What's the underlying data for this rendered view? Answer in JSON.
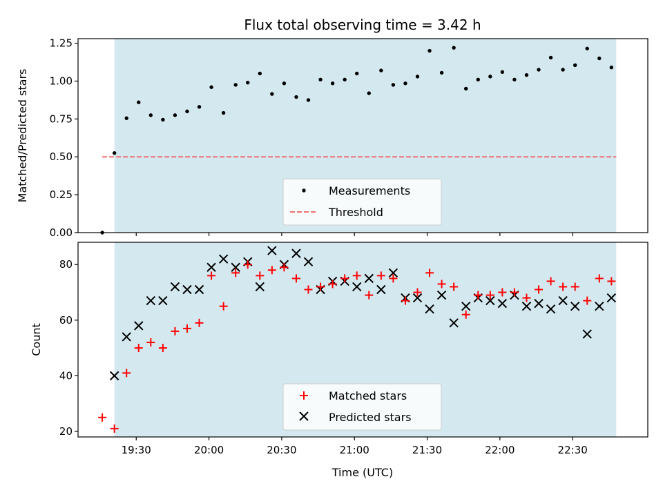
{
  "chart_data": [
    {
      "type": "scatter",
      "title": "Flux total observing time = 3.42 h",
      "xlabel": "",
      "ylabel": "Matched/Predicted stars",
      "xlim_minutes": [
        1146,
        1381
      ],
      "ylim": [
        0,
        1.28
      ],
      "xticks": [
        {
          "minutes": 1170,
          "label": "19:30"
        },
        {
          "minutes": 1200,
          "label": "20:00"
        },
        {
          "minutes": 1230,
          "label": "20:30"
        },
        {
          "minutes": 1260,
          "label": "21:00"
        },
        {
          "minutes": 1290,
          "label": "21:30"
        },
        {
          "minutes": 1320,
          "label": "22:00"
        },
        {
          "minutes": 1350,
          "label": "22:30"
        }
      ],
      "show_xtick_labels": false,
      "yticks": [
        0.0,
        0.25,
        0.5,
        0.75,
        1.0,
        1.25
      ],
      "ytick_labels": [
        "0.00",
        "0.25",
        "0.50",
        "0.75",
        "1.00",
        "1.25"
      ],
      "observing_span_minutes": [
        1161,
        1368
      ],
      "span_color": "#d4e9ef",
      "threshold": {
        "name": "Threshold",
        "value": 0.5,
        "from_minutes": 1156,
        "to_minutes": 1368,
        "color": "#f07070"
      },
      "series": [
        {
          "name": "Measurements",
          "marker": "dot",
          "color": "#000000",
          "x_minutes": [
            1156,
            1161,
            1166,
            1171,
            1176,
            1181,
            1186,
            1191,
            1196,
            1201,
            1206,
            1211,
            1216,
            1221,
            1226,
            1231,
            1236,
            1241,
            1246,
            1251,
            1256,
            1261,
            1266,
            1271,
            1276,
            1281,
            1286,
            1291,
            1296,
            1301,
            1306,
            1311,
            1316,
            1321,
            1326,
            1331,
            1336,
            1341,
            1346,
            1351,
            1356,
            1361,
            1366
          ],
          "values": [
            0.0,
            0.525,
            0.755,
            0.86,
            0.775,
            0.745,
            0.775,
            0.8,
            0.83,
            0.96,
            0.79,
            0.975,
            0.99,
            1.05,
            0.915,
            0.985,
            0.895,
            0.875,
            1.01,
            0.985,
            1.01,
            1.05,
            0.92,
            1.07,
            0.975,
            0.985,
            1.03,
            1.2,
            1.055,
            1.22,
            0.95,
            1.01,
            1.03,
            1.06,
            1.01,
            1.04,
            1.075,
            1.155,
            1.075,
            1.105,
            1.215,
            1.15,
            1.09
          ]
        }
      ],
      "legend": {
        "placement": "lower-center",
        "entries": [
          "Measurements",
          "Threshold"
        ]
      }
    },
    {
      "type": "scatter",
      "title": "",
      "xlabel": "Time (UTC)",
      "ylabel": "Count",
      "xlim_minutes": [
        1146,
        1381
      ],
      "ylim": [
        18,
        88
      ],
      "xticks": [
        {
          "minutes": 1170,
          "label": "19:30"
        },
        {
          "minutes": 1200,
          "label": "20:00"
        },
        {
          "minutes": 1230,
          "label": "20:30"
        },
        {
          "minutes": 1260,
          "label": "21:00"
        },
        {
          "minutes": 1290,
          "label": "21:30"
        },
        {
          "minutes": 1320,
          "label": "22:00"
        },
        {
          "minutes": 1350,
          "label": "22:30"
        }
      ],
      "show_xtick_labels": true,
      "yticks": [
        20,
        40,
        60,
        80
      ],
      "ytick_labels": [
        "20",
        "40",
        "60",
        "80"
      ],
      "observing_span_minutes": [
        1161,
        1368
      ],
      "span_color": "#d4e9ef",
      "series": [
        {
          "name": "Matched stars",
          "marker": "plus",
          "color": "#ff0000",
          "x_minutes": [
            1156,
            1161,
            1166,
            1171,
            1176,
            1181,
            1186,
            1191,
            1196,
            1201,
            1206,
            1211,
            1216,
            1221,
            1226,
            1231,
            1236,
            1241,
            1246,
            1251,
            1256,
            1261,
            1266,
            1271,
            1276,
            1281,
            1286,
            1291,
            1296,
            1301,
            1306,
            1311,
            1316,
            1321,
            1326,
            1331,
            1336,
            1341,
            1346,
            1351,
            1356,
            1361,
            1366
          ],
          "values": [
            25,
            21,
            41,
            50,
            52,
            50,
            56,
            57,
            59,
            76,
            65,
            77,
            80,
            76,
            78,
            79,
            75,
            71,
            72,
            73,
            75,
            76,
            69,
            76,
            75,
            67,
            70,
            77,
            73,
            72,
            62,
            69,
            69,
            70,
            70,
            68,
            71,
            74,
            72,
            72,
            67,
            75,
            74
          ]
        },
        {
          "name": "Predicted stars",
          "marker": "x",
          "color": "#000000",
          "x_minutes": [
            1161,
            1166,
            1171,
            1176,
            1181,
            1186,
            1191,
            1196,
            1201,
            1206,
            1211,
            1216,
            1221,
            1226,
            1231,
            1236,
            1241,
            1246,
            1251,
            1256,
            1261,
            1266,
            1271,
            1276,
            1281,
            1286,
            1291,
            1296,
            1301,
            1306,
            1311,
            1316,
            1321,
            1326,
            1331,
            1336,
            1341,
            1346,
            1351,
            1356,
            1361,
            1366
          ],
          "values": [
            40,
            54,
            58,
            67,
            67,
            72,
            71,
            71,
            79,
            82,
            79,
            81,
            72,
            85,
            80,
            84,
            81,
            71,
            74,
            74,
            72,
            75,
            71,
            77,
            68,
            68,
            64,
            69,
            59,
            65,
            68,
            67,
            66,
            69,
            65,
            66,
            64,
            67,
            65,
            55,
            65,
            68
          ]
        }
      ],
      "legend": {
        "placement": "lower-center",
        "entries": [
          "Matched stars",
          "Predicted stars"
        ]
      }
    }
  ]
}
